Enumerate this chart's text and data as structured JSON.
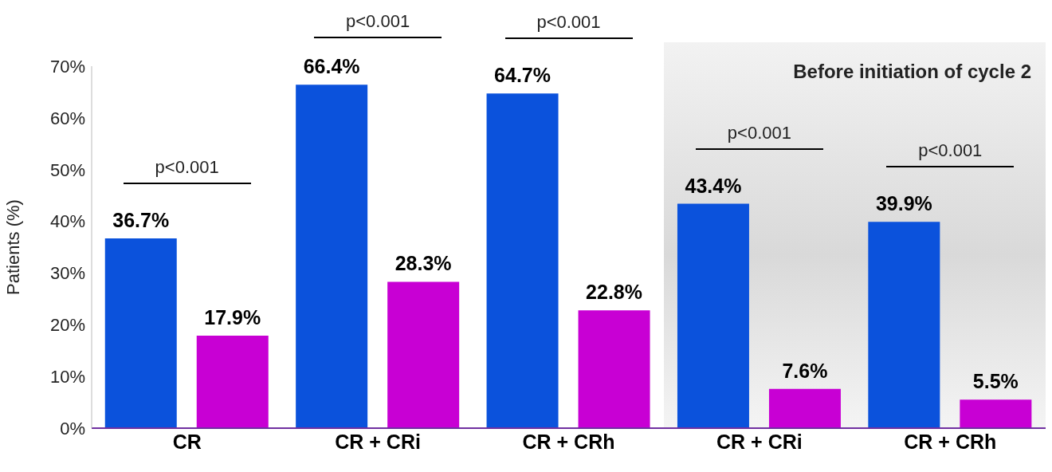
{
  "chart_data": {
    "type": "bar",
    "ylabel": "Patients (%)",
    "categories": [
      "CR",
      "CR + CRi",
      "CR + CRh",
      "CR + CRi",
      "CR + CRh"
    ],
    "series": [
      {
        "color": "#0b52dc",
        "values": [
          36.7,
          66.4,
          64.7,
          43.4,
          39.9
        ],
        "value_labels": [
          "36.7%",
          "66.4%",
          "64.7%",
          "43.4%",
          "39.9%"
        ]
      },
      {
        "color": "#c800d4",
        "values": [
          17.9,
          28.3,
          22.8,
          7.6,
          5.5
        ],
        "value_labels": [
          "17.9%",
          "28.3%",
          "22.8%",
          "7.6%",
          "5.5%"
        ]
      }
    ],
    "ylim": [
      0,
      70
    ],
    "yticks": [
      {
        "value": 0,
        "label": "0%"
      },
      {
        "value": 10,
        "label": "10%"
      },
      {
        "value": 20,
        "label": "20%"
      },
      {
        "value": 30,
        "label": "30%"
      },
      {
        "value": 40,
        "label": "40%"
      },
      {
        "value": 50,
        "label": "50%"
      },
      {
        "value": 60,
        "label": "60%"
      },
      {
        "value": 70,
        "label": "70%"
      }
    ],
    "grid": false,
    "legend": false,
    "annotations": [
      "p<0.001",
      "p<0.001",
      "p<0.001",
      "p<0.001",
      "p<0.001",
      "Before initiation of cycle 2"
    ]
  }
}
